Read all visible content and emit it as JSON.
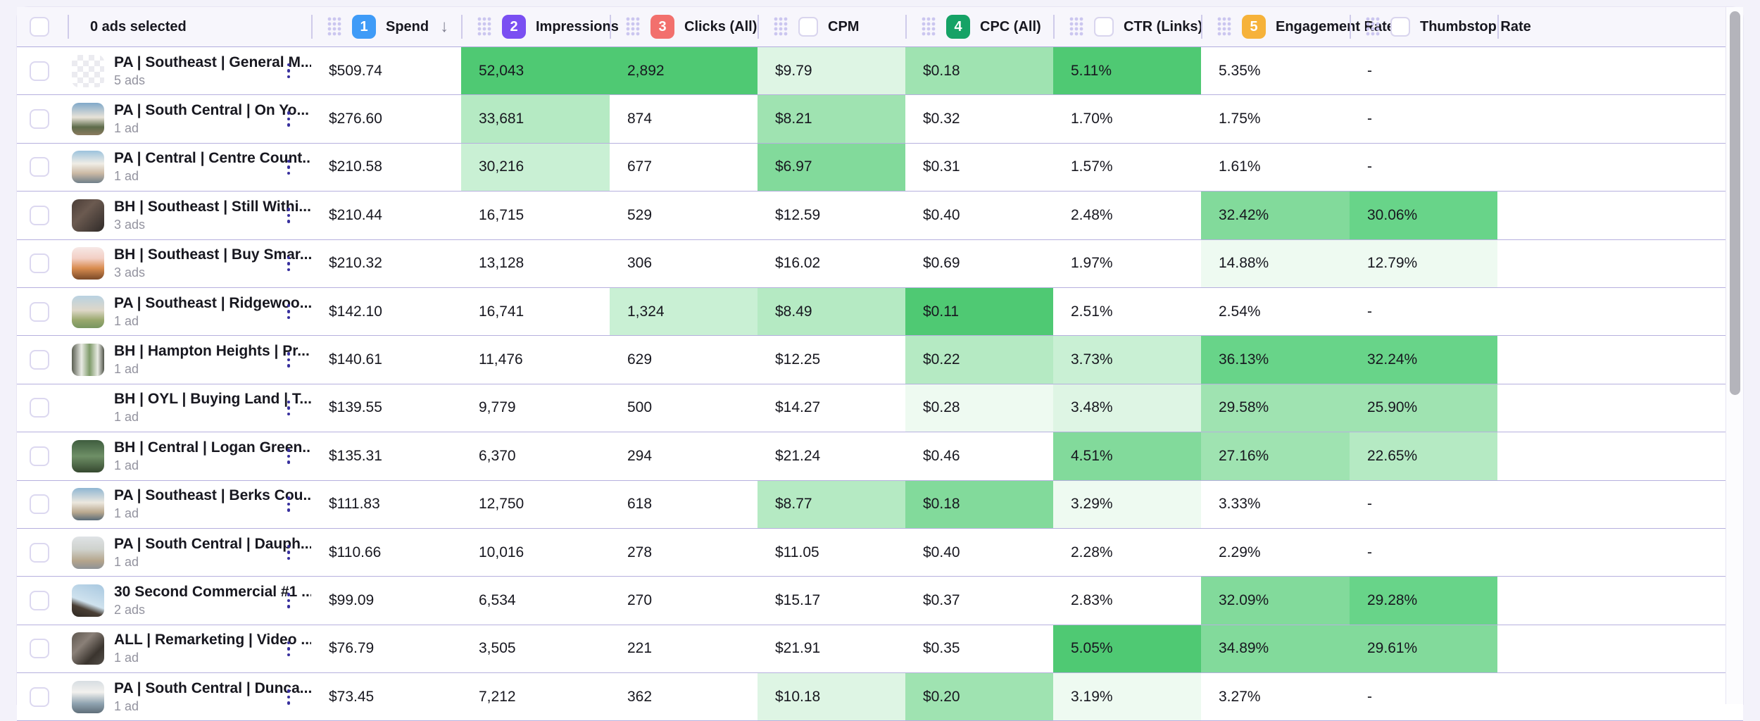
{
  "header": {
    "selection_label": "0 ads selected",
    "columns": [
      {
        "key": "spend",
        "label": "Spend",
        "badge": "1",
        "badge_color": "#3f9bf7",
        "control": "badge",
        "sorted": "desc"
      },
      {
        "key": "impressions",
        "label": "Impressions",
        "badge": "2",
        "badge_color": "#7a4ff2",
        "control": "badge"
      },
      {
        "key": "clicks",
        "label": "Clicks (All)",
        "badge": "3",
        "badge_color": "#f2706d",
        "control": "badge"
      },
      {
        "key": "cpm",
        "label": "CPM",
        "control": "checkbox"
      },
      {
        "key": "cpc",
        "label": "CPC (All)",
        "badge": "4",
        "badge_color": "#16a266",
        "control": "badge"
      },
      {
        "key": "ctr",
        "label": "CTR (Links)",
        "control": "checkbox"
      },
      {
        "key": "engagement",
        "label": "Engagement Rate",
        "badge": "5",
        "badge_color": "#f6b23a",
        "control": "badge"
      },
      {
        "key": "thumbstop",
        "label": "Thumbstop Rate",
        "control": "checkbox"
      }
    ]
  },
  "palette": {
    "heat": [
      "#ffffff",
      "#eefaf1",
      "#def5e4",
      "#c9f0d4",
      "#b5eac3",
      "#9fe3b1",
      "#82da9b",
      "#68d489",
      "#4fc973"
    ],
    "header_bg": "#f7f6fc",
    "page_bg": "#f3f2fa",
    "row_border": "#b6b0de",
    "kebab": "#38309e"
  },
  "rows": [
    {
      "name": "PA | Southeast | General M...",
      "count": "5 ads",
      "thumb": "checker",
      "metrics": {
        "spend": {
          "v": "$509.74",
          "h": 0
        },
        "impressions": {
          "v": "52,043",
          "h": 8
        },
        "clicks": {
          "v": "2,892",
          "h": 8
        },
        "cpm": {
          "v": "$9.79",
          "h": 2
        },
        "cpc": {
          "v": "$0.18",
          "h": 5
        },
        "ctr": {
          "v": "5.11%",
          "h": 8
        },
        "engagement": {
          "v": "5.35%",
          "h": 0
        },
        "thumbstop": {
          "v": "-",
          "h": 0
        }
      }
    },
    {
      "name": "PA | South Central | On Yo...",
      "count": "1 ad",
      "thumb": "tg-house1",
      "metrics": {
        "spend": {
          "v": "$276.60",
          "h": 0
        },
        "impressions": {
          "v": "33,681",
          "h": 4
        },
        "clicks": {
          "v": "874",
          "h": 0
        },
        "cpm": {
          "v": "$8.21",
          "h": 5
        },
        "cpc": {
          "v": "$0.32",
          "h": 0
        },
        "ctr": {
          "v": "1.70%",
          "h": 0
        },
        "engagement": {
          "v": "1.75%",
          "h": 0
        },
        "thumbstop": {
          "v": "-",
          "h": 0
        }
      }
    },
    {
      "name": "PA | Central | Centre Count...",
      "count": "1 ad",
      "thumb": "tg-house2",
      "metrics": {
        "spend": {
          "v": "$210.58",
          "h": 0
        },
        "impressions": {
          "v": "30,216",
          "h": 3
        },
        "clicks": {
          "v": "677",
          "h": 0
        },
        "cpm": {
          "v": "$6.97",
          "h": 6
        },
        "cpc": {
          "v": "$0.31",
          "h": 0
        },
        "ctr": {
          "v": "1.57%",
          "h": 0
        },
        "engagement": {
          "v": "1.61%",
          "h": 0
        },
        "thumbstop": {
          "v": "-",
          "h": 0
        }
      }
    },
    {
      "name": "BH | Southeast | Still Withi...",
      "count": "3 ads",
      "thumb": "tg-people-dark",
      "metrics": {
        "spend": {
          "v": "$210.44",
          "h": 0
        },
        "impressions": {
          "v": "16,715",
          "h": 0
        },
        "clicks": {
          "v": "529",
          "h": 0
        },
        "cpm": {
          "v": "$12.59",
          "h": 0
        },
        "cpc": {
          "v": "$0.40",
          "h": 0
        },
        "ctr": {
          "v": "2.48%",
          "h": 0
        },
        "engagement": {
          "v": "32.42%",
          "h": 6
        },
        "thumbstop": {
          "v": "30.06%",
          "h": 7
        }
      }
    },
    {
      "name": "BH | Southeast | Buy Smar...",
      "count": "3 ads",
      "thumb": "tg-sunset",
      "metrics": {
        "spend": {
          "v": "$210.32",
          "h": 0
        },
        "impressions": {
          "v": "13,128",
          "h": 0
        },
        "clicks": {
          "v": "306",
          "h": 0
        },
        "cpm": {
          "v": "$16.02",
          "h": 0
        },
        "cpc": {
          "v": "$0.69",
          "h": 0
        },
        "ctr": {
          "v": "1.97%",
          "h": 0
        },
        "engagement": {
          "v": "14.88%",
          "h": 1
        },
        "thumbstop": {
          "v": "12.79%",
          "h": 1
        }
      }
    },
    {
      "name": "PA | Southeast | Ridgewoo...",
      "count": "1 ad",
      "thumb": "tg-house-pool",
      "metrics": {
        "spend": {
          "v": "$142.10",
          "h": 0
        },
        "impressions": {
          "v": "16,741",
          "h": 0
        },
        "clicks": {
          "v": "1,324",
          "h": 3
        },
        "cpm": {
          "v": "$8.49",
          "h": 4
        },
        "cpc": {
          "v": "$0.11",
          "h": 8
        },
        "ctr": {
          "v": "2.51%",
          "h": 0
        },
        "engagement": {
          "v": "2.54%",
          "h": 0
        },
        "thumbstop": {
          "v": "-",
          "h": 0
        }
      }
    },
    {
      "name": "BH | Hampton Heights | Pr...",
      "count": "1 ad",
      "thumb": "tg-window",
      "metrics": {
        "spend": {
          "v": "$140.61",
          "h": 0
        },
        "impressions": {
          "v": "11,476",
          "h": 0
        },
        "clicks": {
          "v": "629",
          "h": 0
        },
        "cpm": {
          "v": "$12.25",
          "h": 0
        },
        "cpc": {
          "v": "$0.22",
          "h": 4
        },
        "ctr": {
          "v": "3.73%",
          "h": 3
        },
        "engagement": {
          "v": "36.13%",
          "h": 7
        },
        "thumbstop": {
          "v": "32.24%",
          "h": 7
        }
      }
    },
    {
      "name": "BH | OYL | Buying Land | T...",
      "count": "1 ad",
      "thumb": "none",
      "metrics": {
        "spend": {
          "v": "$139.55",
          "h": 0
        },
        "impressions": {
          "v": "9,779",
          "h": 0
        },
        "clicks": {
          "v": "500",
          "h": 0
        },
        "cpm": {
          "v": "$14.27",
          "h": 0
        },
        "cpc": {
          "v": "$0.28",
          "h": 1
        },
        "ctr": {
          "v": "3.48%",
          "h": 2
        },
        "engagement": {
          "v": "29.58%",
          "h": 5
        },
        "thumbstop": {
          "v": "25.90%",
          "h": 5
        }
      }
    },
    {
      "name": "BH | Central | Logan Green...",
      "count": "1 ad",
      "thumb": "tg-garden",
      "metrics": {
        "spend": {
          "v": "$135.31",
          "h": 0
        },
        "impressions": {
          "v": "6,370",
          "h": 0
        },
        "clicks": {
          "v": "294",
          "h": 0
        },
        "cpm": {
          "v": "$21.24",
          "h": 0
        },
        "cpc": {
          "v": "$0.46",
          "h": 0
        },
        "ctr": {
          "v": "4.51%",
          "h": 6
        },
        "engagement": {
          "v": "27.16%",
          "h": 5
        },
        "thumbstop": {
          "v": "22.65%",
          "h": 4
        }
      }
    },
    {
      "name": "PA | Southeast | Berks Cou...",
      "count": "1 ad",
      "thumb": "tg-house3",
      "metrics": {
        "spend": {
          "v": "$111.83",
          "h": 0
        },
        "impressions": {
          "v": "12,750",
          "h": 0
        },
        "clicks": {
          "v": "618",
          "h": 0
        },
        "cpm": {
          "v": "$8.77",
          "h": 4
        },
        "cpc": {
          "v": "$0.18",
          "h": 6
        },
        "ctr": {
          "v": "3.29%",
          "h": 1
        },
        "engagement": {
          "v": "3.33%",
          "h": 0
        },
        "thumbstop": {
          "v": "-",
          "h": 0
        }
      }
    },
    {
      "name": "PA | South Central | Dauph...",
      "count": "1 ad",
      "thumb": "tg-interior",
      "metrics": {
        "spend": {
          "v": "$110.66",
          "h": 0
        },
        "impressions": {
          "v": "10,016",
          "h": 0
        },
        "clicks": {
          "v": "278",
          "h": 0
        },
        "cpm": {
          "v": "$11.05",
          "h": 0
        },
        "cpc": {
          "v": "$0.40",
          "h": 0
        },
        "ctr": {
          "v": "2.28%",
          "h": 0
        },
        "engagement": {
          "v": "2.29%",
          "h": 0
        },
        "thumbstop": {
          "v": "-",
          "h": 0
        }
      }
    },
    {
      "name": "30 Second Commercial #1 ...",
      "count": "2 ads",
      "thumb": "tg-sky",
      "metrics": {
        "spend": {
          "v": "$99.09",
          "h": 0
        },
        "impressions": {
          "v": "6,534",
          "h": 0
        },
        "clicks": {
          "v": "270",
          "h": 0
        },
        "cpm": {
          "v": "$15.17",
          "h": 0
        },
        "cpc": {
          "v": "$0.37",
          "h": 0
        },
        "ctr": {
          "v": "2.83%",
          "h": 0
        },
        "engagement": {
          "v": "32.09%",
          "h": 6
        },
        "thumbstop": {
          "v": "29.28%",
          "h": 7
        }
      }
    },
    {
      "name": "ALL | Remarketing | Video ...",
      "count": "1 ad",
      "thumb": "tg-room-people",
      "metrics": {
        "spend": {
          "v": "$76.79",
          "h": 0
        },
        "impressions": {
          "v": "3,505",
          "h": 0
        },
        "clicks": {
          "v": "221",
          "h": 0
        },
        "cpm": {
          "v": "$21.91",
          "h": 0
        },
        "cpc": {
          "v": "$0.35",
          "h": 0
        },
        "ctr": {
          "v": "5.05%",
          "h": 8
        },
        "engagement": {
          "v": "34.89%",
          "h": 6
        },
        "thumbstop": {
          "v": "29.61%",
          "h": 6
        }
      }
    },
    {
      "name": "PA | South Central | Dunca...",
      "count": "1 ad",
      "thumb": "tg-house4",
      "metrics": {
        "spend": {
          "v": "$73.45",
          "h": 0
        },
        "impressions": {
          "v": "7,212",
          "h": 0
        },
        "clicks": {
          "v": "362",
          "h": 0
        },
        "cpm": {
          "v": "$10.18",
          "h": 2
        },
        "cpc": {
          "v": "$0.20",
          "h": 5
        },
        "ctr": {
          "v": "3.19%",
          "h": 1
        },
        "engagement": {
          "v": "3.27%",
          "h": 0
        },
        "thumbstop": {
          "v": "-",
          "h": 0
        }
      }
    }
  ]
}
